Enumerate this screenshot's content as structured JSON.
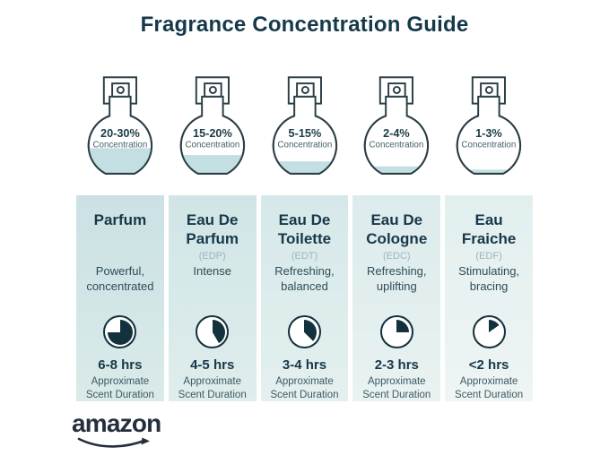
{
  "title": "Fragrance Concentration Guide",
  "shared": {
    "concentration_label": "Concentration",
    "approximate_label": "Approximate",
    "scent_duration_label": "Scent Duration"
  },
  "brand": {
    "name": "amazon"
  },
  "colors": {
    "heading_dark_teal": "#16394a",
    "card_teal_light": "#cfe4e5",
    "bottle_liquid_teal": "#c3dfe1",
    "bottle_outline": "#2b3e46",
    "clock_dark": "#14323d",
    "abbr_gray": "#9db6bb",
    "logo_dark": "#242f3e"
  },
  "columns": [
    {
      "percent": "20-30%",
      "name": "Parfum",
      "abbr": "",
      "description": "Powerful, concentrated",
      "duration": "6-8 hrs",
      "bottle_fill_percent": 46,
      "clock_degrees": 270
    },
    {
      "percent": "15-20%",
      "name": "Eau De Parfum",
      "abbr": "(EDP)",
      "description": "Intense",
      "duration": "4-5 hrs",
      "bottle_fill_percent": 35,
      "clock_degrees": 150
    },
    {
      "percent": "5-15%",
      "name": "Eau De Toilette",
      "abbr": "(EDT)",
      "description": "Refreshing, balanced",
      "duration": "3-4 hrs",
      "bottle_fill_percent": 25,
      "clock_degrees": 135
    },
    {
      "percent": "2-4%",
      "name": "Eau De Cologne",
      "abbr": "(EDC)",
      "description": "Refreshing, uplifting",
      "duration": "2-3 hrs",
      "bottle_fill_percent": 17,
      "clock_degrees": 90
    },
    {
      "percent": "1-3%",
      "name": "Eau Fraiche",
      "abbr": "(EDF)",
      "description": "Stimulating, bracing",
      "duration": "<2 hrs",
      "bottle_fill_percent": 12,
      "clock_degrees": 55
    }
  ]
}
